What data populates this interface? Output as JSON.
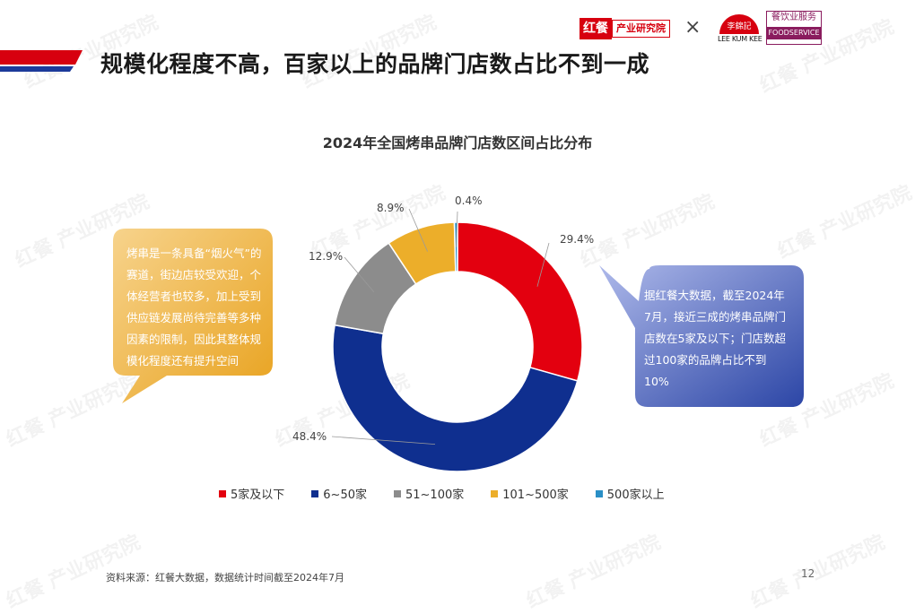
{
  "header": {
    "title": "规模化程度不高，百家以上的品牌门店数占比不到一成",
    "logos": {
      "hongcan_main": "红餐",
      "hongcan_sub": "产业研究院",
      "cross": "×",
      "lkk_name": "LEE KUM KEE",
      "lkk_cn": "李錦記",
      "foodservice_cn": "餐饮业服务",
      "foodservice_en": "FOODSERVICE"
    }
  },
  "watermark_text": "红餐 产业研究院",
  "chart_data": {
    "type": "pie",
    "title": "2024年全国烤串品牌门店数区间占比分布",
    "categories": [
      "5家及以下",
      "6~50家",
      "51~100家",
      "101~500家",
      "500家以上"
    ],
    "values": [
      29.4,
      48.4,
      12.9,
      8.9,
      0.4
    ],
    "value_labels": [
      "29.4%",
      "48.4%",
      "12.9%",
      "8.9%",
      "0.4%"
    ],
    "colors": [
      "#e3000f",
      "#0f2f8f",
      "#8c8c8c",
      "#ecae2a",
      "#2a8fc6"
    ],
    "donut": true,
    "start_angle_deg": 0,
    "direction": "clockwise",
    "legend_position": "bottom"
  },
  "callouts": {
    "left": "烤串是一条具备“烟火气”的赛道，街边店较受欢迎，个体经营者也较多，加上受到供应链发展尚待完善等多种因素的限制，因此其整体规模化程度还有提升空间",
    "right": "据红餐大数据，截至2024年7月，接近三成的烤串品牌门店数在5家及以下；门店数超过100家的品牌占比不到10%"
  },
  "footer": {
    "source": "资料来源：红餐大数据，数据统计时间截至2024年7月",
    "page_number": "12"
  }
}
